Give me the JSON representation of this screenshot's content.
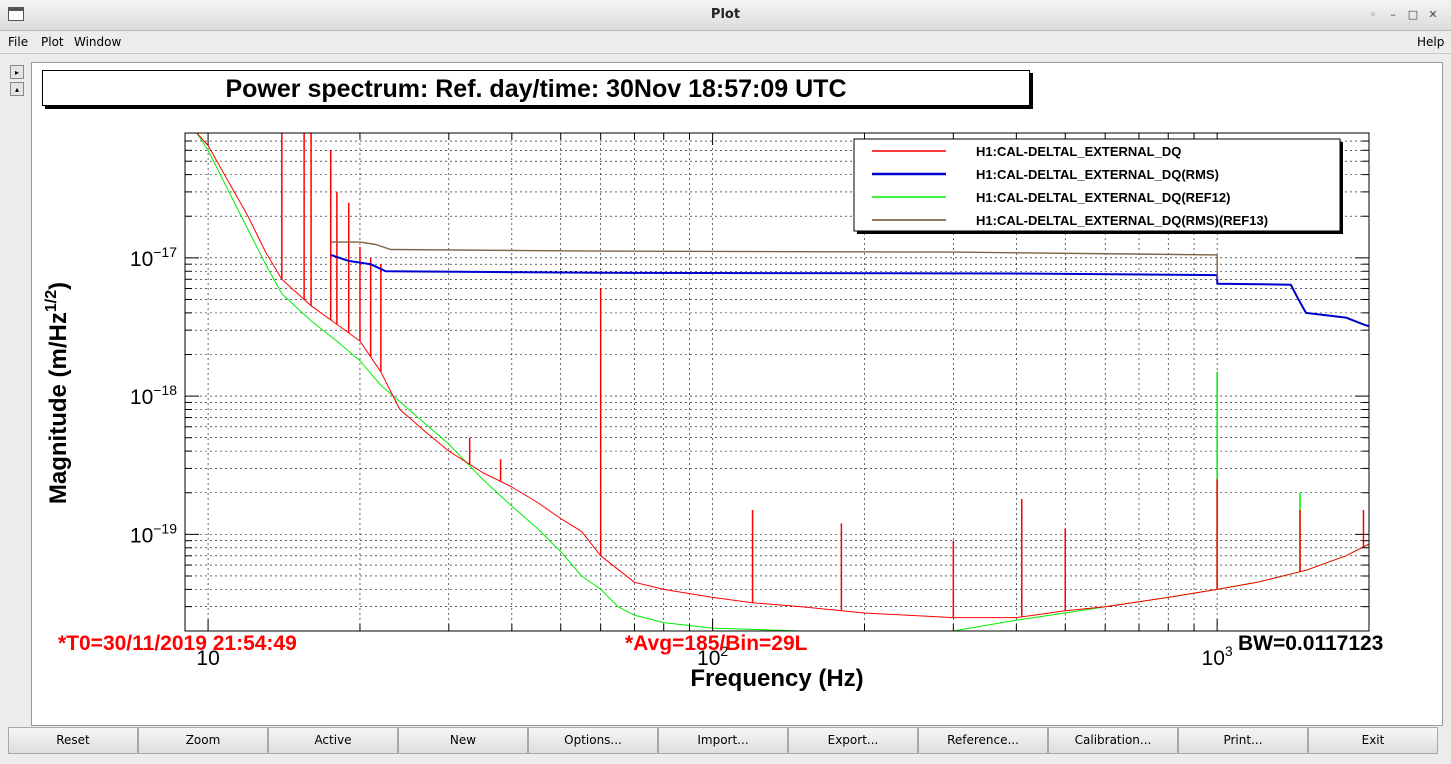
{
  "window": {
    "title": "Plot",
    "controls": [
      "◦",
      "–",
      "□",
      "✕"
    ]
  },
  "menu": {
    "file": "File",
    "plot": "Plot",
    "window": "Window",
    "help": "Help"
  },
  "side_arrows": {
    "up": "▸",
    "down": "▴"
  },
  "plot_title": "Power spectrum: Ref. day/time: 30Nov 18:57:09 UTC",
  "status": {
    "t0": "*T0=30/11/2019 21:54:49",
    "avg": "*Avg=185/Bin=29L",
    "bw": "BW=0.0117123",
    "t0_color": "#ff0000",
    "avg_color": "#ff0000",
    "bw_color": "#000000"
  },
  "buttons": [
    "Reset",
    "Zoom",
    "Active",
    "New",
    "Options...",
    "Import...",
    "Export...",
    "Reference...",
    "Calibration...",
    "Print...",
    "Exit"
  ],
  "chart_data": {
    "type": "line",
    "xlabel": "Frequency (Hz)",
    "ylabel": "Magnitude (m/Hz",
    "ylabel_sup": "1/2",
    "ylabel_close": ")",
    "xscale": "log",
    "yscale": "log",
    "xlim": [
      9,
      2000
    ],
    "ylim": [
      2e-20,
      8e-17
    ],
    "grid": true,
    "legend_position": "top-right",
    "x_ticks": [
      {
        "value": 10,
        "base": "10",
        "exp": ""
      },
      {
        "value": 100,
        "base": "10",
        "exp": "2"
      },
      {
        "value": 1000,
        "base": "10",
        "exp": "3"
      }
    ],
    "y_ticks": [
      {
        "value": 1e-17,
        "base": "10",
        "exp": "−17"
      },
      {
        "value": 1e-18,
        "base": "10",
        "exp": "−18"
      },
      {
        "value": 1e-19,
        "base": "10",
        "exp": "−19"
      }
    ],
    "series": [
      {
        "name": "H1:CAL-DELTAL_EXTERNAL_DQ",
        "color": "#ff0000",
        "width": 1,
        "points": [
          [
            9.5,
            8e-17
          ],
          [
            10,
            6.5e-17
          ],
          [
            11,
            3.5e-17
          ],
          [
            12,
            2e-17
          ],
          [
            13,
            1.1e-17
          ],
          [
            14,
            7e-18
          ],
          [
            16,
            4.5e-18
          ],
          [
            18,
            3.3e-18
          ],
          [
            20,
            2.5e-18
          ],
          [
            22,
            1.5e-18
          ],
          [
            24,
            8e-19
          ],
          [
            27,
            5.5e-19
          ],
          [
            30,
            4e-19
          ],
          [
            35,
            2.8e-19
          ],
          [
            40,
            2.2e-19
          ],
          [
            45,
            1.7e-19
          ],
          [
            50,
            1.3e-19
          ],
          [
            55,
            1.05e-19
          ],
          [
            60,
            7e-20
          ],
          [
            70,
            4.5e-20
          ],
          [
            80,
            4e-20
          ],
          [
            100,
            3.5e-20
          ],
          [
            120,
            3.2e-20
          ],
          [
            150,
            3e-20
          ],
          [
            200,
            2.7e-20
          ],
          [
            300,
            2.5e-20
          ],
          [
            400,
            2.5e-20
          ],
          [
            500,
            2.8e-20
          ],
          [
            600,
            3e-20
          ],
          [
            800,
            3.5e-20
          ],
          [
            1000,
            4e-20
          ],
          [
            1200,
            4.5e-20
          ],
          [
            1500,
            5.5e-20
          ],
          [
            1800,
            7e-20
          ],
          [
            2000,
            8.5e-20
          ]
        ],
        "spikes": [
          [
            14,
            1.2e-16
          ],
          [
            15.5,
            9e-17
          ],
          [
            16,
            8e-17
          ],
          [
            17.5,
            6e-17
          ],
          [
            18,
            3e-17
          ],
          [
            19,
            2.5e-17
          ],
          [
            20,
            1.2e-17
          ],
          [
            21,
            1e-17
          ],
          [
            22,
            9e-18
          ],
          [
            30,
            4e-19
          ],
          [
            33,
            5e-19
          ],
          [
            38,
            3.5e-19
          ],
          [
            60,
            6e-18
          ],
          [
            120,
            1.5e-19
          ],
          [
            180,
            1.2e-19
          ],
          [
            300,
            9e-20
          ],
          [
            410,
            1.8e-19
          ],
          [
            500,
            1.1e-19
          ],
          [
            1000,
            2.5e-19
          ],
          [
            1460,
            1.5e-19
          ],
          [
            1950,
            1.5e-19
          ]
        ]
      },
      {
        "name": "H1:CAL-DELTAL_EXTERNAL_DQ(RMS)",
        "color": "#0000cc",
        "width": 2,
        "points": [
          [
            17.5,
            1.05e-17
          ],
          [
            19,
            9.5e-18
          ],
          [
            21,
            9e-18
          ],
          [
            22.5,
            8e-18
          ],
          [
            60,
            7.8e-18
          ],
          [
            400,
            7.7e-18
          ],
          [
            1000,
            7.5e-18
          ],
          [
            1001,
            6.5e-18
          ],
          [
            1400,
            6.4e-18
          ],
          [
            1450,
            5e-18
          ],
          [
            1500,
            4e-18
          ],
          [
            1800,
            3.7e-18
          ],
          [
            1950,
            3.3e-18
          ],
          [
            2000,
            3.2e-18
          ]
        ],
        "spikes": []
      },
      {
        "name": "H1:CAL-DELTAL_EXTERNAL_DQ(REF12)",
        "color": "#00ee00",
        "width": 1,
        "points": [
          [
            9.5,
            8e-17
          ],
          [
            10,
            6e-17
          ],
          [
            11,
            3e-17
          ],
          [
            12,
            1.6e-17
          ],
          [
            13,
            9e-18
          ],
          [
            14,
            5.5e-18
          ],
          [
            16,
            3.5e-18
          ],
          [
            18,
            2.5e-18
          ],
          [
            20,
            1.8e-18
          ],
          [
            22,
            1.2e-18
          ],
          [
            25,
            8e-19
          ],
          [
            30,
            4.5e-19
          ],
          [
            35,
            2.5e-19
          ],
          [
            40,
            1.6e-19
          ],
          [
            45,
            1.1e-19
          ],
          [
            50,
            7.5e-20
          ],
          [
            55,
            5e-20
          ],
          [
            60,
            4e-20
          ],
          [
            65,
            3e-20
          ],
          [
            70,
            2.6e-20
          ],
          [
            80,
            2.3e-20
          ],
          [
            100,
            2.1e-20
          ],
          [
            150,
            2e-20
          ],
          [
            200,
            2e-20
          ],
          [
            300,
            2e-20
          ],
          [
            400,
            2.4e-20
          ],
          [
            500,
            2.7e-20
          ],
          [
            600,
            3e-20
          ],
          [
            800,
            3.5e-20
          ],
          [
            1000,
            4e-20
          ],
          [
            1200,
            4.5e-20
          ],
          [
            1500,
            5.5e-20
          ],
          [
            1800,
            7e-20
          ],
          [
            2000,
            8.5e-20
          ]
        ],
        "spikes": [
          [
            1000,
            1.5e-18
          ],
          [
            1460,
            2e-19
          ]
        ]
      },
      {
        "name": "H1:CAL-DELTAL_EXTERNAL_DQ(RMS)(REF13)",
        "color": "#7f6347",
        "width": 1.4,
        "points": [
          [
            17.5,
            1.3e-17
          ],
          [
            20,
            1.3e-17
          ],
          [
            21.5,
            1.25e-17
          ],
          [
            23,
            1.15e-17
          ],
          [
            60,
            1.12e-17
          ],
          [
            300,
            1.1e-17
          ],
          [
            1000,
            1.05e-17
          ],
          [
            1001,
            7e-18
          ]
        ],
        "spikes": []
      }
    ]
  }
}
